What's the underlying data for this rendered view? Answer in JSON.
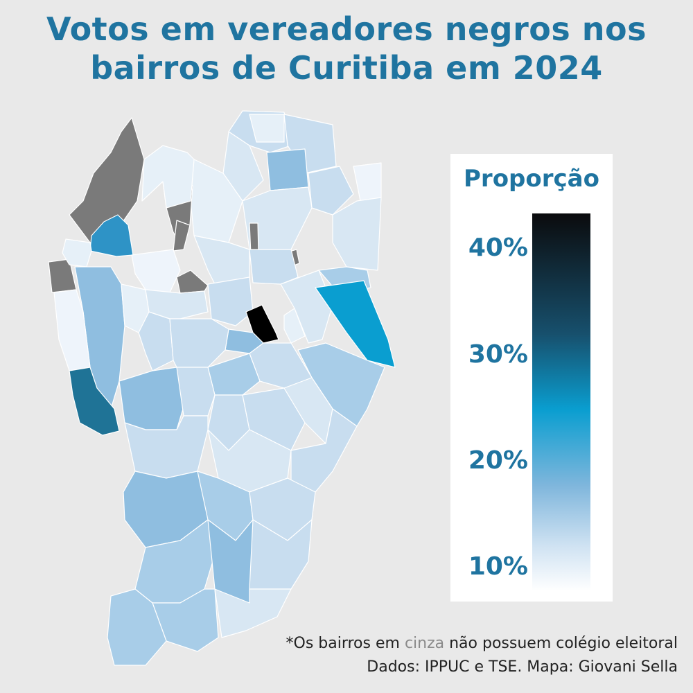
{
  "title": {
    "line1": "Votos em vereadores negros nos",
    "line2": "bairros de Curitiba em 2024"
  },
  "legend": {
    "title": "Proporção",
    "ticks": [
      {
        "label": "40%",
        "value": 40
      },
      {
        "label": "30%",
        "value": 30
      },
      {
        "label": "20%",
        "value": 20
      },
      {
        "label": "10%",
        "value": 10
      }
    ],
    "colors": {
      "max": "#0b0b0d",
      "high": "#17506d",
      "mid": "#0a9ed0",
      "low": "#7fb6dc",
      "min": "#ffffff"
    }
  },
  "colors": {
    "no_data": "#7a7a7a",
    "background": "#e9e9e9",
    "title": "#1f74a0"
  },
  "footnote": {
    "prefix": "*Os bairros em ",
    "gray_word": "cinza",
    "suffix": " não possuem colégio eleitoral"
  },
  "credits": "Dados: IPPUC e TSE. Mapa: Giovani Sella"
}
